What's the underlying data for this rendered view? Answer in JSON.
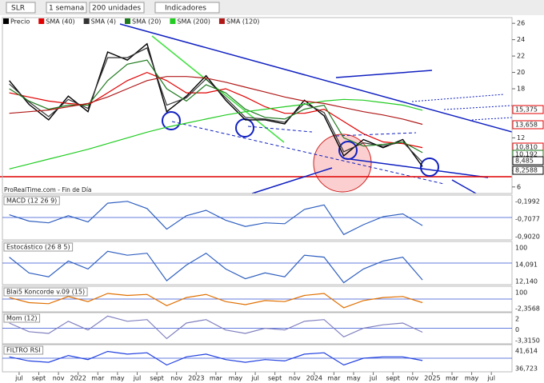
{
  "toolbar": {
    "symbol": "SLR",
    "period": "1 semana",
    "units": "200 unidades",
    "indicators": "Indicadores"
  },
  "source": "ProRealTime.com - Fin de Día",
  "chart_data": [
    {
      "type": "line",
      "x": [
        -1,
        1,
        3,
        5,
        7,
        9,
        11,
        13,
        15,
        17,
        19,
        21,
        23,
        25,
        27,
        29,
        31,
        33,
        35,
        37,
        39,
        41
      ],
      "xlim": [
        -1.7,
        50.1
      ],
      "xticks": [
        {
          "value": 0,
          "label": "jul"
        },
        {
          "value": 2,
          "label": "sept"
        },
        {
          "value": 4,
          "label": "nov"
        },
        {
          "value": 6,
          "label": "2022"
        },
        {
          "value": 8,
          "label": "mar"
        },
        {
          "value": 10,
          "label": "may"
        },
        {
          "value": 12,
          "label": "jul"
        },
        {
          "value": 14,
          "label": "sept"
        },
        {
          "value": 16,
          "label": "nov"
        },
        {
          "value": 18,
          "label": "2023"
        },
        {
          "value": 20,
          "label": "mar"
        },
        {
          "value": 22,
          "label": "may"
        },
        {
          "value": 24,
          "label": "jul"
        },
        {
          "value": 26,
          "label": "sept"
        },
        {
          "value": 28,
          "label": "nov"
        },
        {
          "value": 30,
          "label": "2024"
        },
        {
          "value": 32,
          "label": "mar"
        },
        {
          "value": 34,
          "label": "may"
        },
        {
          "value": 36,
          "label": "jul"
        },
        {
          "value": 38,
          "label": "sept"
        },
        {
          "value": 40,
          "label": "nov"
        },
        {
          "value": 42,
          "label": "2025"
        },
        {
          "value": 44,
          "label": "mar"
        },
        {
          "value": 46,
          "label": "may"
        },
        {
          "value": 48,
          "label": "jul"
        }
      ],
      "ylim": [
        5.2,
        26.7
      ],
      "yticks": [
        6,
        8,
        12,
        18,
        20,
        22,
        24,
        26
      ],
      "series": [
        {
          "name": "Precio",
          "color": "#000000",
          "values": [
            19.0,
            16.1,
            14.2,
            17.1,
            15.2,
            22.5,
            21.5,
            23.5,
            15.2,
            17.1,
            19.6,
            16.6,
            14.2,
            14.2,
            13.7,
            16.6,
            14.7,
            9.8,
            11.8,
            10.8,
            11.8,
            8.485
          ]
        },
        {
          "name": "SMA (40)",
          "color": "#e00000",
          "values": [
            17.5,
            17,
            16.5,
            16.2,
            16,
            17.5,
            19,
            20,
            19,
            17.5,
            17.5,
            18,
            17,
            15.8,
            15,
            15,
            15.5,
            14,
            12.5,
            11.5,
            11.3,
            10.81
          ]
        },
        {
          "name": "SMA (4)",
          "color": "#333333",
          "values": [
            18.6,
            16.4,
            14.6,
            16.7,
            15.6,
            21.8,
            21.8,
            23.0,
            16.0,
            16.9,
            19.2,
            16.9,
            14.5,
            14.3,
            13.9,
            16.2,
            15.1,
            10.3,
            11.4,
            11.0,
            11.5,
            9.0
          ]
        },
        {
          "name": "SMA (20)",
          "color": "#1e7a1e",
          "values": [
            18,
            16.5,
            15.5,
            16,
            16,
            19,
            21,
            21.5,
            18,
            16.5,
            18.5,
            17.5,
            15.5,
            14.5,
            14.3,
            15.5,
            16,
            12,
            11,
            11.2,
            11.5,
            10.192
          ]
        },
        {
          "name": "SMA (200)",
          "color": "#22cc22",
          "values": [
            8.2,
            8.8,
            9.4,
            10,
            10.6,
            11.3,
            12,
            12.7,
            13.3,
            13.8,
            14.3,
            14.8,
            15.2,
            15.5,
            15.8,
            16.1,
            16.5,
            16.7,
            16.6,
            16.3,
            16,
            15.375
          ]
        },
        {
          "name": "SMA (120)",
          "color": "#b01818",
          "values": [
            15,
            15.2,
            15.4,
            15.8,
            16.2,
            17,
            18,
            19,
            19.5,
            19.5,
            19.3,
            18.8,
            18.2,
            17.6,
            17,
            16.5,
            16.2,
            15.7,
            15.2,
            14.8,
            14.3,
            13.658
          ]
        }
      ],
      "price_labels": [
        {
          "text": "15,375",
          "color": "#e00000"
        },
        {
          "text": "13,658",
          "color": "#e00000"
        },
        {
          "text": "10,810",
          "color": "#e00000"
        },
        {
          "text": "10,192",
          "color": "#1e7a1e"
        },
        {
          "text": "8,485",
          "color": "#000000"
        },
        {
          "text": "8,2588",
          "color": "#000000"
        }
      ]
    },
    {
      "type": "line",
      "title": "MACD (12 26 9)",
      "color": "#3060c0",
      "ylim": [
        -2.5,
        2.5
      ],
      "x": [
        -1,
        1,
        3,
        5,
        7,
        9,
        11,
        13,
        15,
        17,
        19,
        21,
        23,
        25,
        27,
        29,
        31,
        33,
        35,
        37,
        39,
        41
      ],
      "values": [
        0.3,
        -0.4,
        -0.6,
        0.2,
        -0.5,
        1.6,
        1.8,
        1.0,
        -1.3,
        0.2,
        0.8,
        -0.3,
        -1.0,
        -0.6,
        -0.7,
        0.9,
        1.4,
        -1.9,
        -0.8,
        0.1,
        0.4,
        -0.9
      ],
      "labels": [
        "-0,1992",
        "-0,7077",
        "-0,9020"
      ]
    },
    {
      "type": "line",
      "title": "Estocástico (26 8 5)",
      "color": "#3060c0",
      "ylim": [
        0,
        110
      ],
      "x": [
        -1,
        1,
        3,
        5,
        7,
        9,
        11,
        13,
        15,
        17,
        19,
        21,
        23,
        25,
        27,
        29,
        31,
        33,
        35,
        37,
        39,
        41
      ],
      "values": [
        70,
        30,
        20,
        60,
        40,
        85,
        75,
        80,
        10,
        50,
        80,
        40,
        15,
        30,
        20,
        75,
        70,
        5,
        40,
        60,
        70,
        12
      ],
      "labels": [
        "100",
        "14,091",
        "12,140"
      ]
    },
    {
      "type": "line",
      "title": "Blai5 Koncorde v.09 (15)",
      "color": "#e07000",
      "ylim": [
        -120,
        130
      ],
      "x": [
        -1,
        1,
        3,
        5,
        7,
        9,
        11,
        13,
        15,
        17,
        19,
        21,
        23,
        25,
        27,
        29,
        31,
        33,
        35,
        37,
        39,
        41
      ],
      "values": [
        20,
        -30,
        -40,
        30,
        -20,
        60,
        40,
        50,
        -60,
        20,
        50,
        -20,
        -50,
        -10,
        -20,
        40,
        60,
        -80,
        -10,
        20,
        30,
        -30
      ],
      "labels": [
        "100",
        "-2,3568"
      ]
    },
    {
      "type": "line",
      "title": "Mom (12)",
      "color": "#8080c0",
      "ylim": [
        -10,
        8
      ],
      "x": [
        -1,
        1,
        3,
        5,
        7,
        9,
        11,
        13,
        15,
        17,
        19,
        21,
        23,
        25,
        27,
        29,
        31,
        33,
        35,
        37,
        39,
        41
      ],
      "values": [
        2,
        -3,
        -4,
        3,
        -2,
        6,
        3,
        4,
        -7,
        2,
        4,
        -2,
        -4,
        -1,
        -2,
        3,
        4,
        -6,
        -1,
        1,
        2,
        -3.315
      ],
      "labels": [
        "2",
        "0",
        "-3,3150"
      ]
    },
    {
      "type": "line",
      "title": "FILTRO RSI",
      "color": "#2040e0",
      "ylim": [
        0,
        100
      ],
      "x": [
        -1,
        1,
        3,
        5,
        7,
        9,
        11,
        13,
        15,
        17,
        19,
        21,
        23,
        25,
        27,
        29,
        31,
        33,
        35,
        37,
        39,
        41
      ],
      "values": [
        55,
        40,
        35,
        60,
        45,
        75,
        65,
        70,
        25,
        55,
        65,
        45,
        35,
        45,
        40,
        65,
        70,
        25,
        50,
        55,
        55,
        41.614
      ],
      "labels": [
        "41,614",
        "36,723"
      ]
    }
  ]
}
